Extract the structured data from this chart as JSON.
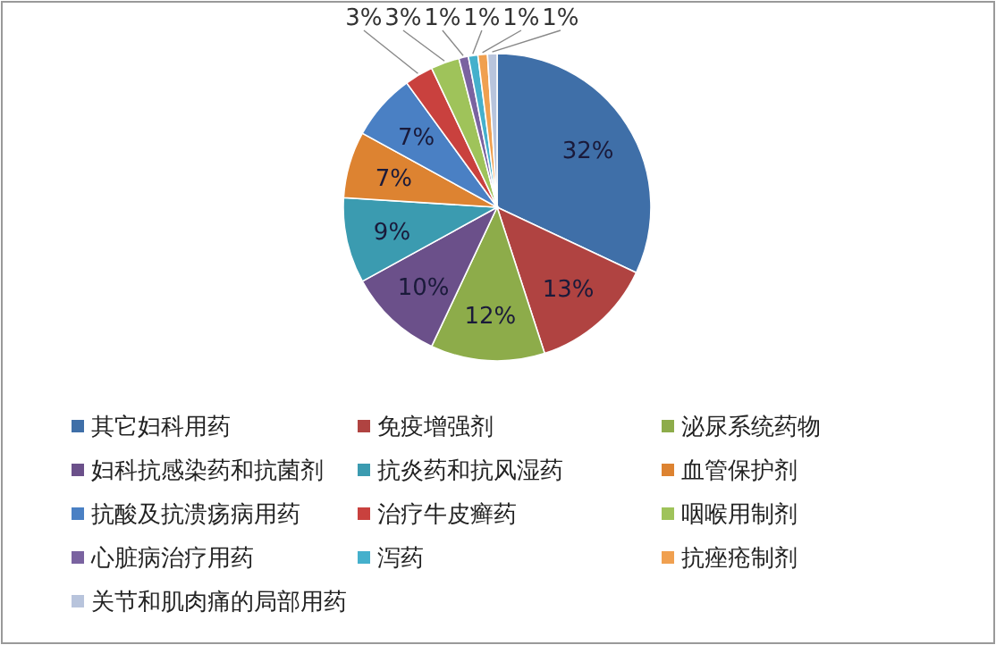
{
  "chart_data": {
    "type": "pie",
    "categories": [
      "其它妇科用药",
      "免疫增强剂",
      "泌尿系统药物",
      "妇科抗感染药和抗菌剂",
      "抗炎药和抗风湿药",
      "血管保护剂",
      "抗酸及抗溃疡病用药",
      "治疗牛皮癣药",
      "咽喉用制剂",
      "心脏病治疗用药",
      "泻药",
      "抗痤疮制剂",
      "关节和肌肉痛的局部用药"
    ],
    "values": [
      32,
      13,
      12,
      10,
      9,
      7,
      7,
      3,
      3,
      1,
      1,
      1,
      1
    ],
    "colors": [
      "#3f6fa8",
      "#b04341",
      "#8dac4a",
      "#6b508a",
      "#3b9bb0",
      "#dd8331",
      "#4a80c4",
      "#c9413e",
      "#9fc35a",
      "#7a63a0",
      "#45b0cc",
      "#f0a050",
      "#b8c4dc"
    ],
    "value_labels": [
      "32%",
      "13%",
      "12%",
      "10%",
      "9%",
      "7%",
      "7%",
      "3%",
      "3%",
      "1%",
      "1%",
      "1%",
      "1%"
    ],
    "legend": "bottom"
  }
}
